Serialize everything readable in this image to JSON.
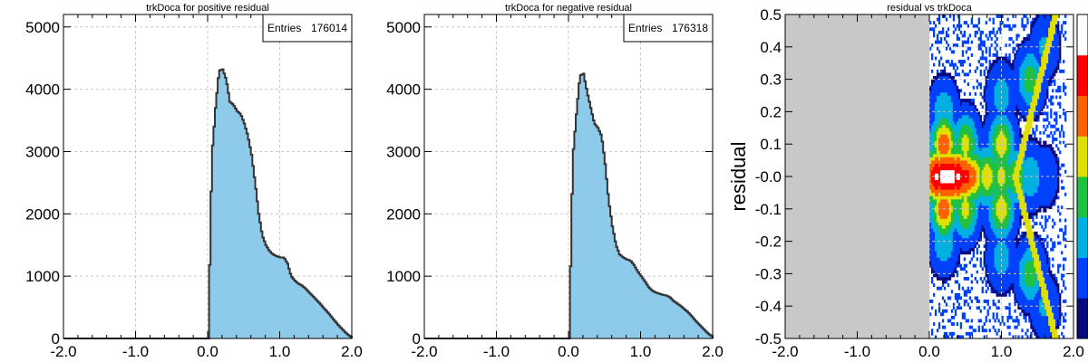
{
  "chart_data": [
    {
      "type": "bar",
      "title": "trkDoca for positive residual",
      "xlabel": "",
      "ylabel": "",
      "xlim": [
        -2.0,
        2.0
      ],
      "ylim": [
        0,
        5200
      ],
      "x_ticks": [
        -2.0,
        -1.0,
        0.0,
        1.0,
        2.0
      ],
      "x_tick_labels": [
        "-2.0",
        "-1.0",
        "0.0",
        "1.0",
        "2.0"
      ],
      "y_ticks": [
        0,
        1000,
        2000,
        3000,
        4000,
        5000
      ],
      "y_tick_labels": [
        "0",
        "1000",
        "2000",
        "3000",
        "4000",
        "5000"
      ],
      "grid": true,
      "stats_box": {
        "label": "Entries",
        "value": "176014"
      },
      "fill_color": "#8ecae9",
      "line_color": "#333333",
      "x": [
        0.0,
        0.05,
        0.1,
        0.15,
        0.2,
        0.25,
        0.3,
        0.35,
        0.4,
        0.45,
        0.5,
        0.55,
        0.6,
        0.65,
        0.7,
        0.75,
        0.8,
        0.85,
        0.9,
        0.95,
        1.0,
        1.05,
        1.1,
        1.15,
        1.2,
        1.25,
        1.3,
        1.35,
        1.4,
        1.45,
        1.5,
        1.55,
        1.6,
        1.65,
        1.7,
        1.75,
        1.8,
        1.85,
        1.9,
        1.95,
        2.0
      ],
      "values": [
        0,
        2950,
        3700,
        4300,
        4320,
        4150,
        3800,
        3750,
        3650,
        3600,
        3450,
        3250,
        2950,
        2500,
        2000,
        1650,
        1500,
        1400,
        1350,
        1320,
        1300,
        1300,
        1200,
        1000,
        930,
        880,
        850,
        800,
        740,
        680,
        620,
        560,
        490,
        430,
        360,
        290,
        220,
        160,
        100,
        50,
        10
      ]
    },
    {
      "type": "bar",
      "title": "trkDoca for negative residual",
      "xlabel": "",
      "ylabel": "",
      "xlim": [
        -2.0,
        2.0
      ],
      "ylim": [
        0,
        5200
      ],
      "x_ticks": [
        -2.0,
        -1.0,
        0.0,
        1.0,
        2.0
      ],
      "x_tick_labels": [
        "-2.0",
        "-1.0",
        "0.0",
        "1.0",
        "2.0"
      ],
      "y_ticks": [
        0,
        1000,
        2000,
        3000,
        4000,
        5000
      ],
      "y_tick_labels": [
        "0",
        "1000",
        "2000",
        "3000",
        "4000",
        "5000"
      ],
      "grid": true,
      "stats_box": {
        "label": "Entries",
        "value": "176318"
      },
      "fill_color": "#8ecae9",
      "line_color": "#333333",
      "x": [
        0.0,
        0.05,
        0.1,
        0.15,
        0.2,
        0.25,
        0.3,
        0.35,
        0.4,
        0.45,
        0.5,
        0.55,
        0.6,
        0.65,
        0.7,
        0.75,
        0.8,
        0.85,
        0.9,
        0.95,
        1.0,
        1.05,
        1.1,
        1.15,
        1.2,
        1.25,
        1.3,
        1.35,
        1.4,
        1.45,
        1.5,
        1.55,
        1.6,
        1.65,
        1.7,
        1.75,
        1.8,
        1.85,
        1.9,
        1.95,
        2.0
      ],
      "values": [
        0,
        2900,
        3600,
        4220,
        4250,
        3950,
        3700,
        3450,
        3380,
        3250,
        2800,
        2200,
        1800,
        1500,
        1350,
        1300,
        1270,
        1250,
        1180,
        1080,
        1000,
        920,
        830,
        770,
        740,
        720,
        700,
        690,
        660,
        600,
        560,
        520,
        470,
        420,
        360,
        290,
        230,
        170,
        110,
        60,
        20
      ]
    },
    {
      "type": "heatmap",
      "title": "residual vs trkDoca",
      "xlabel": "",
      "ylabel": "residual",
      "xlim": [
        -2.0,
        2.0
      ],
      "ylim": [
        -0.5,
        0.5
      ],
      "x_ticks": [
        -2.0,
        -1.0,
        0.0,
        1.0,
        2.0
      ],
      "x_tick_labels": [
        "-2.0",
        "-1.0",
        "0.0",
        "1.0",
        "2.0"
      ],
      "y_ticks": [
        0.5,
        0.4,
        0.3,
        0.2,
        0.1,
        0.0,
        -0.1,
        -0.2,
        -0.3,
        -0.4,
        -0.5
      ],
      "y_tick_labels": [
        "0.5",
        "0.4",
        "0.3",
        "0.2",
        "0.1",
        "-0.0",
        "-0.1",
        "-0.2",
        "-0.3",
        "-0.4",
        "-0.5"
      ],
      "grid": true,
      "background_color": "#c8c8c8",
      "colormap": [
        "#0a0a80",
        "#0040ff",
        "#00b0e0",
        "#20c040",
        "#e0e000",
        "#ff6000",
        "#ff0000",
        "#ffffff"
      ],
      "z_range": [
        0,
        1
      ],
      "cells": [
        {
          "x": 0.0,
          "y": 0.0,
          "z": 0.6
        },
        {
          "x": 0.1,
          "y": 0.0,
          "z": 0.95
        },
        {
          "x": 0.2,
          "y": 0.0,
          "z": 1.0
        },
        {
          "x": 0.3,
          "y": 0.0,
          "z": 1.0
        },
        {
          "x": 0.4,
          "y": 0.0,
          "z": 0.95
        },
        {
          "x": 0.5,
          "y": 0.0,
          "z": 0.85
        },
        {
          "x": 0.6,
          "y": 0.0,
          "z": 0.7
        },
        {
          "x": 0.8,
          "y": 0.0,
          "z": 0.6
        },
        {
          "x": 1.0,
          "y": 0.0,
          "z": 0.55
        },
        {
          "x": 1.2,
          "y": 0.0,
          "z": 0.5
        },
        {
          "x": 1.4,
          "y": 0.0,
          "z": 0.35
        },
        {
          "x": 1.6,
          "y": 0.0,
          "z": 0.2
        },
        {
          "x": 0.2,
          "y": 0.1,
          "z": 0.75
        },
        {
          "x": 0.2,
          "y": -0.1,
          "z": 0.75
        },
        {
          "x": 0.5,
          "y": 0.1,
          "z": 0.55
        },
        {
          "x": 0.5,
          "y": -0.1,
          "z": 0.55
        },
        {
          "x": 1.0,
          "y": 0.1,
          "z": 0.6
        },
        {
          "x": 1.0,
          "y": -0.1,
          "z": 0.6
        },
        {
          "x": 0.2,
          "y": 0.2,
          "z": 0.35
        },
        {
          "x": 0.2,
          "y": -0.2,
          "z": 0.35
        },
        {
          "x": 1.0,
          "y": 0.25,
          "z": 0.3
        },
        {
          "x": 1.0,
          "y": -0.25,
          "z": 0.3
        },
        {
          "x": 1.4,
          "y": 0.3,
          "z": 0.45
        },
        {
          "x": 1.4,
          "y": -0.3,
          "z": 0.45
        },
        {
          "x": 1.6,
          "y": 0.4,
          "z": 0.25
        },
        {
          "x": 1.6,
          "y": -0.4,
          "z": 0.25
        }
      ]
    }
  ]
}
